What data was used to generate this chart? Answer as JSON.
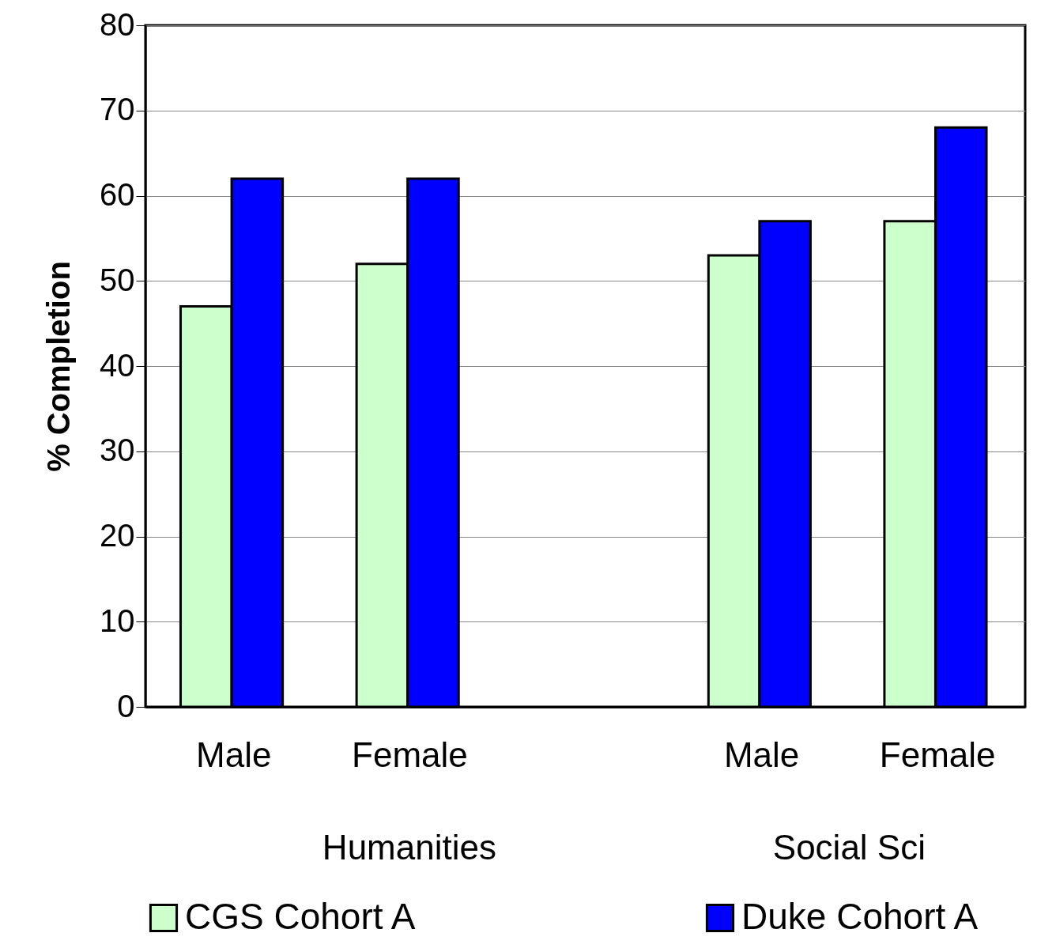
{
  "chart_data": {
    "type": "bar",
    "ylabel": "% Completion",
    "categories": [
      "Male",
      "Female",
      null,
      "Male",
      "Female"
    ],
    "series": [
      {
        "name": "CGS Cohort A",
        "color": "#ccffcc",
        "values": [
          47,
          52,
          null,
          53,
          57
        ]
      },
      {
        "name": "Duke Cohort A",
        "color": "#0000ff",
        "values": [
          62,
          62,
          null,
          57,
          68
        ]
      }
    ],
    "annotations": [
      "Humanities",
      "Social Sci"
    ],
    "ylim": [
      0,
      80
    ],
    "yticks": [
      0,
      10,
      20,
      30,
      40,
      50,
      60,
      70,
      80
    ],
    "grid": "y",
    "legend": "bottom"
  }
}
